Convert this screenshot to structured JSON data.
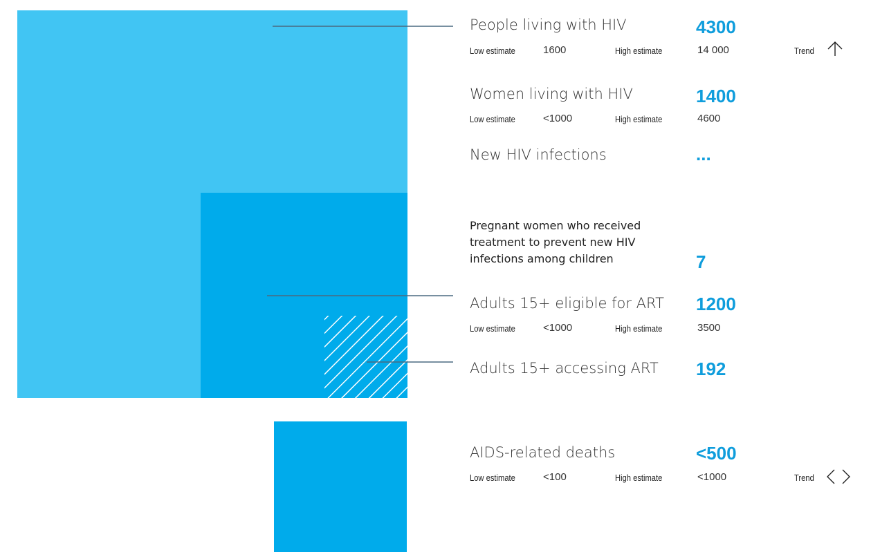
{
  "colors": {
    "light_blue": "#41c5f3",
    "mid_blue": "#00abeb",
    "value_blue": "#0f9ddc",
    "leader_line": "#4a6a80"
  },
  "chart_data": {
    "type": "proportional-area",
    "unit": "people",
    "squares": [
      {
        "label": "People living with HIV",
        "value": 4300,
        "color": "#41c5f3"
      },
      {
        "label": "Adults 15+ eligible for ART",
        "value": 1200,
        "color": "#00abeb"
      },
      {
        "label": "Adults 15+ accessing ART",
        "value": 192,
        "pattern": "hatched"
      },
      {
        "label": "AIDS-related deaths",
        "value": 500,
        "color": "#00abeb"
      }
    ]
  },
  "indicators": {
    "plhiv": {
      "label": "People living with HIV",
      "value": "4300",
      "low_label": "Low estimate",
      "low": "1600",
      "high_label": "High estimate",
      "high": "14 000",
      "trend_label": "Trend",
      "trend_icon": "arrow-up-icon"
    },
    "women": {
      "label": "Women living with HIV",
      "value": "1400",
      "low_label": "Low estimate",
      "low": "<1000",
      "high_label": "High estimate",
      "high": "4600"
    },
    "new_infections": {
      "label": "New HIV infections",
      "value": "..."
    },
    "pregnant": {
      "label": "Pregnant women who received treatment to prevent new HIV infections among children",
      "value": "7"
    },
    "eligible": {
      "label": "Adults 15+ eligible for ART",
      "value": "1200",
      "low_label": "Low estimate",
      "low": "<1000",
      "high_label": "High estimate",
      "high": "3500"
    },
    "accessing": {
      "label": "Adults 15+ accessing ART",
      "value": "192"
    },
    "deaths": {
      "label": "AIDS-related deaths",
      "value": "<500",
      "low_label": "Low estimate",
      "low": "<100",
      "high_label": "High estimate",
      "high": "<1000",
      "trend_label": "Trend",
      "trend_icon": "chevrons-icon"
    }
  }
}
